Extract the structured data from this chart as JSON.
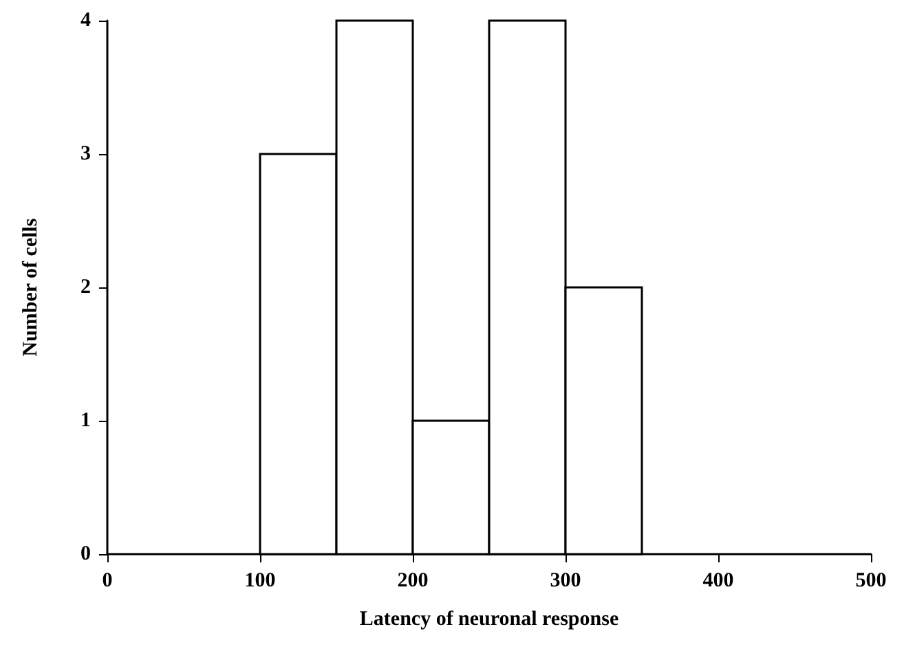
{
  "chart_data": {
    "type": "histogram",
    "xlabel": "Latency of neuronal response",
    "ylabel": "Number of cells",
    "bins": [
      100,
      150,
      200,
      250,
      300,
      350
    ],
    "values": [
      3,
      4,
      1,
      4,
      2
    ],
    "color": "#ffffff",
    "xlim": [
      0,
      500
    ],
    "xticks": [
      0,
      100,
      200,
      300,
      400,
      500
    ],
    "ylim": [
      0,
      4
    ],
    "yticks": [
      0,
      1,
      2,
      3,
      4
    ],
    "grid": false
  }
}
